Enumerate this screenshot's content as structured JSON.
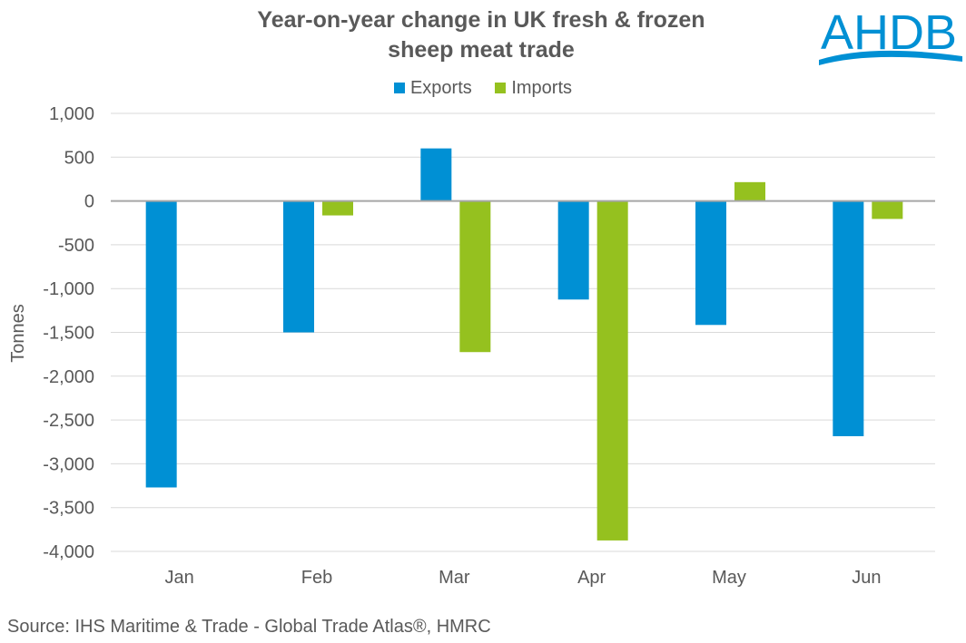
{
  "logo_text": "AHDB",
  "chart_data": {
    "type": "bar",
    "title": "Year-on-year change in UK fresh & frozen sheep meat trade",
    "title_lines": [
      "Year-on-year change in UK fresh & frozen",
      "sheep meat trade"
    ],
    "xlabel": "",
    "ylabel": "Tonnes",
    "ylim": [
      -4000,
      1000
    ],
    "yticks": [
      1000,
      500,
      0,
      -500,
      -1000,
      -1500,
      -2000,
      -2500,
      -3000,
      -3500,
      -4000
    ],
    "ytick_labels": [
      "1,000",
      "500",
      "0",
      "-500",
      "-1,000",
      "-1,500",
      "-2,000",
      "-2,500",
      "-3,000",
      "-3,500",
      "-4,000"
    ],
    "grid": true,
    "legend_position": "top",
    "categories": [
      "Jan",
      "Feb",
      "Mar",
      "Apr",
      "May",
      "Jun"
    ],
    "series": [
      {
        "name": "Exports",
        "color": "#0090D4",
        "values": [
          -3270,
          -1500,
          600,
          -1125,
          -1415,
          -2685
        ]
      },
      {
        "name": "Imports",
        "color": "#95C11F",
        "values": [
          0,
          -165,
          -1725,
          -3875,
          215,
          -205
        ]
      }
    ],
    "source": "Source: IHS Maritime & Trade - Global Trade Atlas®, HMRC"
  }
}
